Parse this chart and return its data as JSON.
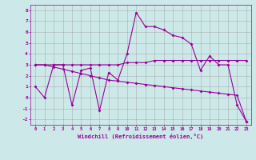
{
  "xlabel": "Windchill (Refroidissement éolien,°C)",
  "background_color": "#cce8e8",
  "line_color": "#990099",
  "grid_color": "#999999",
  "xlim": [
    -0.5,
    23.5
  ],
  "ylim": [
    -2.5,
    8.5
  ],
  "xticks": [
    0,
    1,
    2,
    3,
    4,
    5,
    6,
    7,
    8,
    9,
    10,
    11,
    12,
    13,
    14,
    15,
    16,
    17,
    18,
    19,
    20,
    21,
    22,
    23
  ],
  "yticks": [
    -2,
    -1,
    0,
    1,
    2,
    3,
    4,
    5,
    6,
    7,
    8
  ],
  "series1_x": [
    0,
    1,
    2,
    3,
    4,
    5,
    6,
    7,
    8,
    9,
    10,
    11,
    12,
    13,
    14,
    15,
    16,
    17,
    18,
    19,
    20,
    21,
    22,
    23
  ],
  "series1_y": [
    1.0,
    0.0,
    3.0,
    3.0,
    -0.7,
    2.5,
    2.7,
    -1.2,
    2.3,
    1.6,
    4.0,
    7.8,
    6.5,
    6.5,
    6.2,
    5.7,
    5.5,
    4.9,
    2.5,
    3.8,
    3.0,
    3.0,
    -0.7,
    -2.2
  ],
  "series2_x": [
    0,
    1,
    2,
    3,
    4,
    5,
    6,
    7,
    8,
    9,
    10,
    11,
    12,
    13,
    14,
    15,
    16,
    17,
    18,
    19,
    20,
    21,
    22,
    23
  ],
  "series2_y": [
    3.0,
    3.0,
    3.0,
    3.0,
    3.0,
    3.0,
    3.0,
    3.0,
    3.0,
    3.0,
    3.2,
    3.2,
    3.2,
    3.4,
    3.4,
    3.4,
    3.4,
    3.4,
    3.4,
    3.4,
    3.4,
    3.4,
    3.4,
    3.4
  ],
  "series3_x": [
    0,
    1,
    2,
    3,
    4,
    5,
    6,
    7,
    8,
    9,
    10,
    11,
    12,
    13,
    14,
    15,
    16,
    17,
    18,
    19,
    20,
    21,
    22,
    23
  ],
  "series3_y": [
    3.0,
    3.0,
    2.8,
    2.6,
    2.4,
    2.2,
    2.0,
    1.8,
    1.6,
    1.5,
    1.4,
    1.3,
    1.2,
    1.1,
    1.0,
    0.9,
    0.8,
    0.7,
    0.6,
    0.5,
    0.4,
    0.3,
    0.2,
    -2.2
  ]
}
